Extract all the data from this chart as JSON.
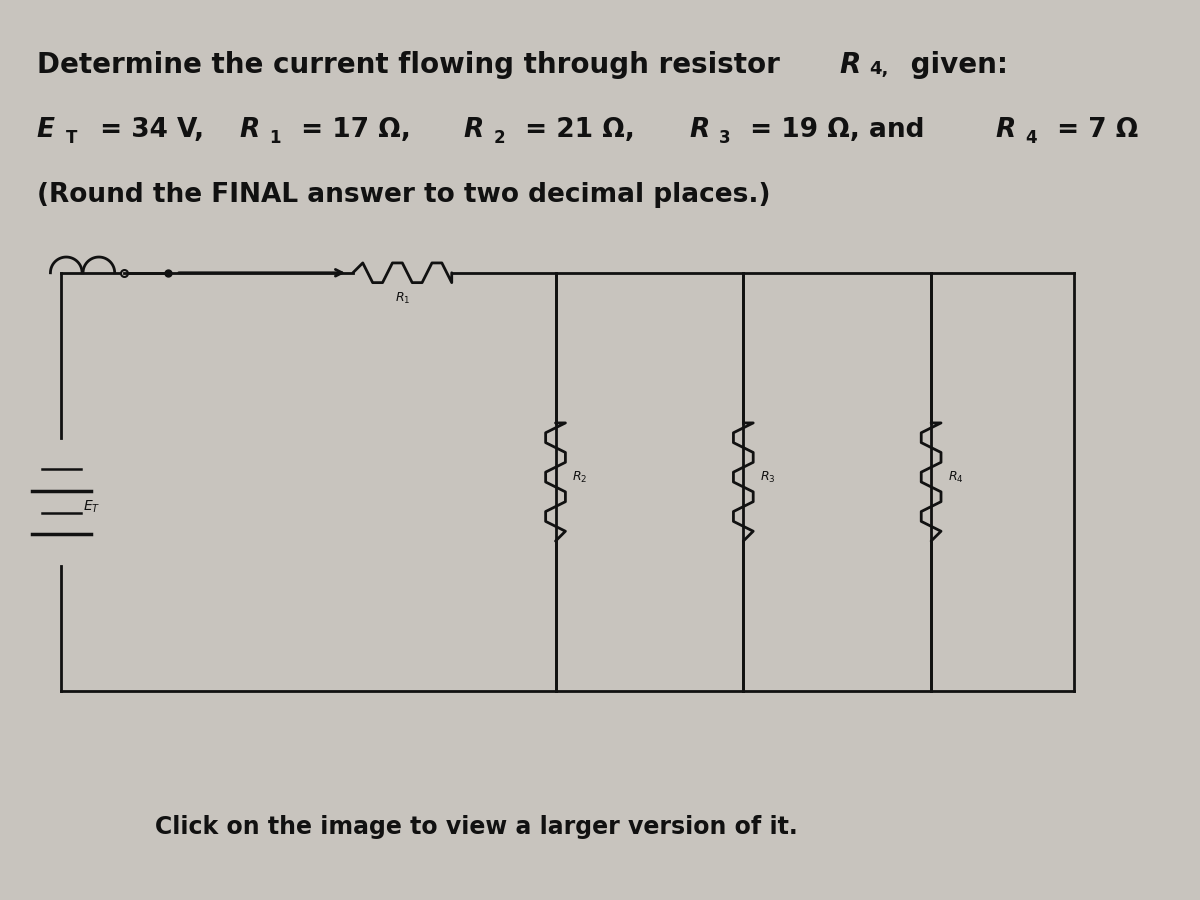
{
  "line1": "Determine the current flowing through resistor R",
  "line1_sub": "4,",
  "line1_end": " given:",
  "line2": "E",
  "line2_sub_T": "T",
  "line2_rest": " = 34 V, R",
  "line2_sub_1": "1",
  "line2_r1": " = 17 Ω, R",
  "line2_sub_2": "2",
  "line2_r2": " = 21 Ω, R",
  "line2_sub_3": "3",
  "line2_r3": " = 19 Ω, and R",
  "line2_sub_4": "4",
  "line2_r4": " = 7 Ω",
  "line3": "(Round the FINAL answer to two decimal places.)",
  "footer": "Click on the image to view a larger version of it.",
  "bg_color": "#c8c4be",
  "text_color": "#111111",
  "line_color": "#111111",
  "fig_width": 12,
  "fig_height": 9
}
